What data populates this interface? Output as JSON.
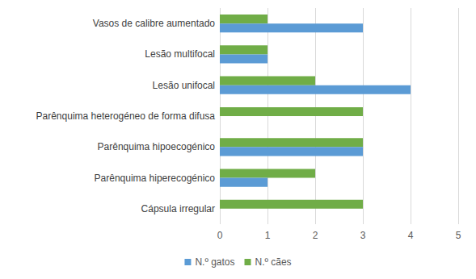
{
  "chart_data": {
    "type": "bar",
    "orientation": "horizontal",
    "categories": [
      "Cápsula irregular",
      "Parênquima hiperecogénico",
      "Parênquima hipoecogénico",
      "Parênquima heterogéneo de forma difusa",
      "Lesão unifocal",
      "Lesão multifocal",
      "Vasos de calibre aumentado"
    ],
    "series": [
      {
        "name": "N.º gatos",
        "color": "#5b9bd5",
        "values": [
          0,
          1,
          3,
          0,
          4,
          1,
          3
        ]
      },
      {
        "name": "N.º cães",
        "color": "#70ad47",
        "values": [
          3,
          2,
          3,
          3,
          2,
          1,
          1
        ]
      }
    ],
    "xlim": [
      0,
      5
    ],
    "xticks": [
      0,
      1,
      2,
      3,
      4,
      5
    ],
    "grid": true,
    "legend": "bottom"
  }
}
